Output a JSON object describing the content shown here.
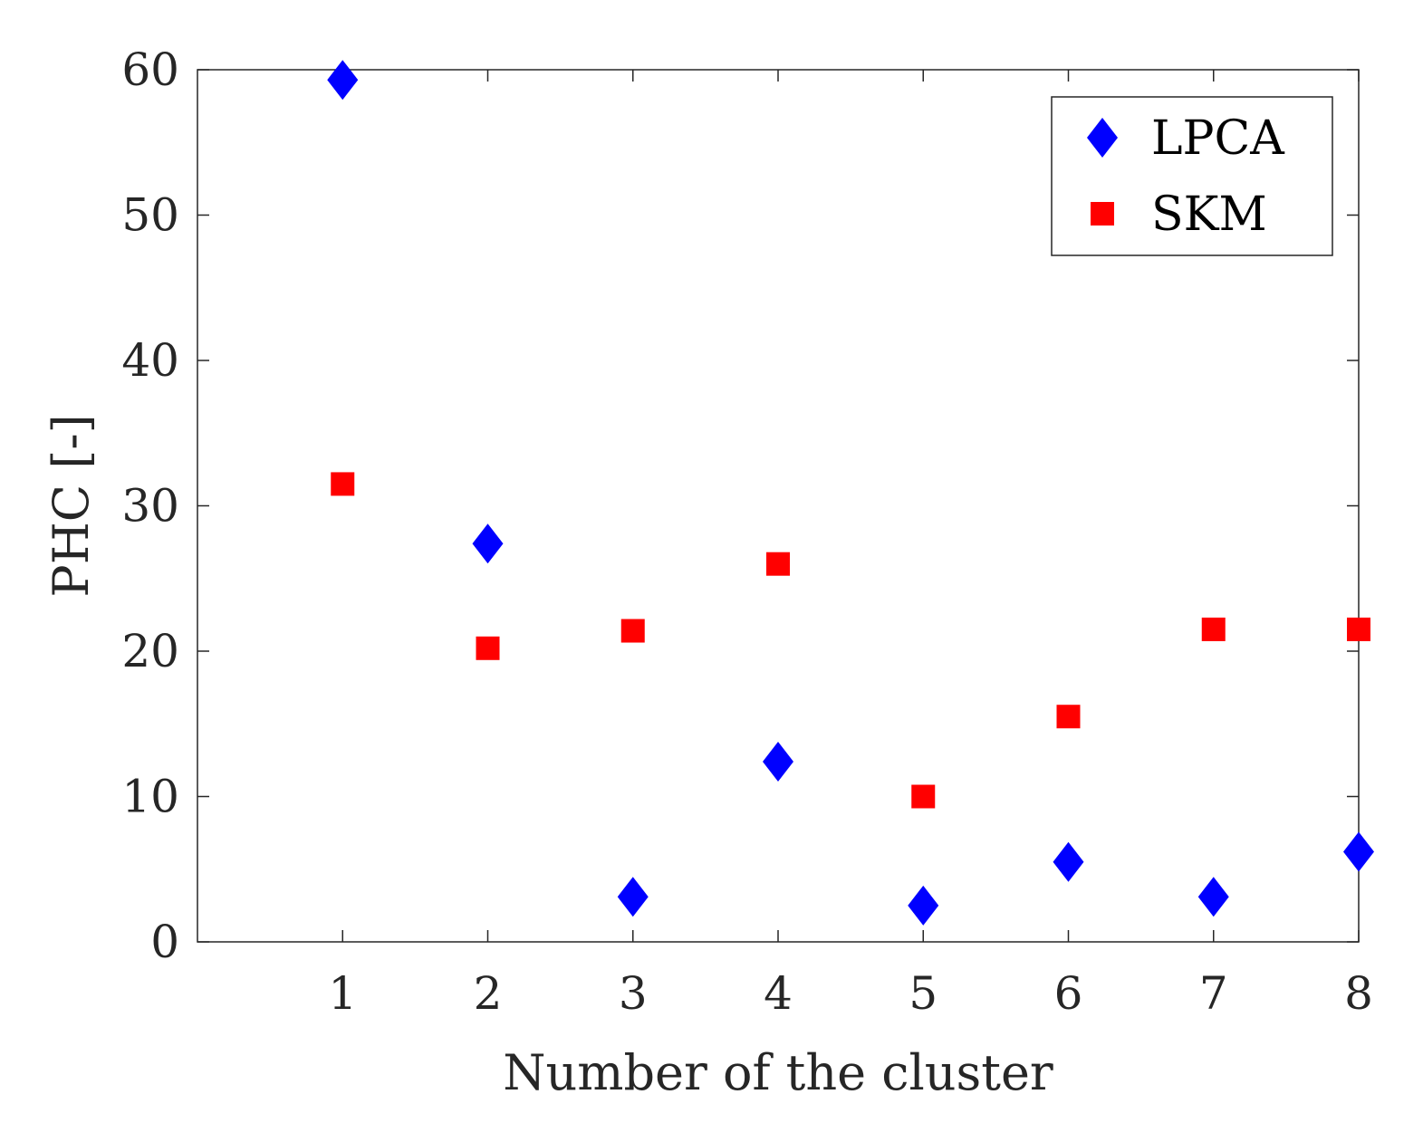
{
  "chart_data": {
    "type": "scatter",
    "title": "",
    "xlabel": "Number of the cluster",
    "ylabel": "PHC [-]",
    "xlim": [
      0,
      8
    ],
    "ylim": [
      0,
      60
    ],
    "xticks": [
      1,
      2,
      3,
      4,
      5,
      6,
      7,
      8
    ],
    "yticks": [
      0,
      10,
      20,
      30,
      40,
      50,
      60
    ],
    "grid": false,
    "legend_position": "top-right",
    "series": [
      {
        "name": "LPCA",
        "marker": "diamond",
        "color": "#0000ff",
        "x": [
          1,
          2,
          3,
          4,
          5,
          6,
          7,
          8
        ],
        "values": [
          59.3,
          27.4,
          3.1,
          12.4,
          2.5,
          5.5,
          3.1,
          6.2
        ]
      },
      {
        "name": "SKM",
        "marker": "square",
        "color": "#ff0000",
        "x": [
          1,
          2,
          3,
          4,
          5,
          6,
          7,
          8
        ],
        "values": [
          31.5,
          20.2,
          21.4,
          26.0,
          10.0,
          15.5,
          21.5,
          21.5
        ]
      }
    ]
  }
}
